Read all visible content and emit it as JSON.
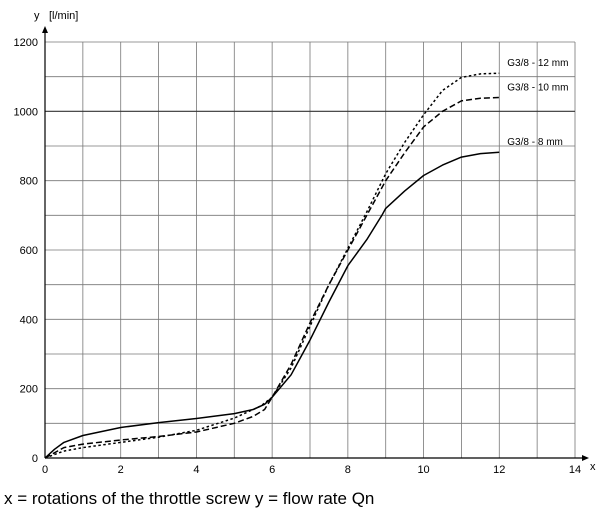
{
  "chart_data": {
    "type": "line",
    "xlabel": "x",
    "ylabel": "y",
    "yunit": "[l/min]",
    "xlim": [
      0,
      14
    ],
    "ylim": [
      0,
      1200
    ],
    "xticks": [
      "0",
      "2",
      "4",
      "6",
      "8",
      "10",
      "12",
      "14"
    ],
    "yticks": [
      "0",
      "200",
      "400",
      "600",
      "800",
      "1000",
      "1200"
    ],
    "grid": true,
    "series": [
      {
        "name": "G3/8 - 12 mm",
        "style": "dotted",
        "points": [
          [
            0,
            0
          ],
          [
            0.5,
            20
          ],
          [
            1,
            30
          ],
          [
            2,
            45
          ],
          [
            3,
            60
          ],
          [
            4,
            80
          ],
          [
            5,
            115
          ],
          [
            5.7,
            150
          ],
          [
            6,
            175
          ],
          [
            6.5,
            260
          ],
          [
            7,
            380
          ],
          [
            7.5,
            500
          ],
          [
            8,
            605
          ],
          [
            8.5,
            710
          ],
          [
            9,
            820
          ],
          [
            9.5,
            910
          ],
          [
            10,
            990
          ],
          [
            10.5,
            1060
          ],
          [
            11,
            1098
          ],
          [
            11.5,
            1108
          ],
          [
            12,
            1110
          ]
        ]
      },
      {
        "name": "G3/8 - 10 mm",
        "style": "dashed",
        "points": [
          [
            0,
            0
          ],
          [
            0.5,
            30
          ],
          [
            1,
            40
          ],
          [
            2,
            52
          ],
          [
            3,
            62
          ],
          [
            4,
            75
          ],
          [
            5,
            100
          ],
          [
            5.5,
            120
          ],
          [
            5.8,
            140
          ],
          [
            6,
            175
          ],
          [
            6.5,
            270
          ],
          [
            7,
            390
          ],
          [
            7.5,
            500
          ],
          [
            8,
            600
          ],
          [
            8.5,
            700
          ],
          [
            9,
            800
          ],
          [
            9.5,
            880
          ],
          [
            10,
            955
          ],
          [
            10.5,
            1000
          ],
          [
            11,
            1030
          ],
          [
            11.5,
            1038
          ],
          [
            12,
            1040
          ]
        ]
      },
      {
        "name": "G3/8 - 8 mm",
        "style": "solid",
        "points": [
          [
            0,
            0
          ],
          [
            0.25,
            25
          ],
          [
            0.5,
            45
          ],
          [
            1,
            65
          ],
          [
            2,
            88
          ],
          [
            3,
            102
          ],
          [
            4,
            114
          ],
          [
            5,
            128
          ],
          [
            5.5,
            140
          ],
          [
            5.8,
            155
          ],
          [
            6,
            175
          ],
          [
            6.5,
            240
          ],
          [
            7,
            340
          ],
          [
            7.5,
            450
          ],
          [
            8,
            555
          ],
          [
            8.5,
            630
          ],
          [
            8.9,
            700
          ],
          [
            9,
            720
          ],
          [
            9.5,
            770
          ],
          [
            10,
            815
          ],
          [
            10.5,
            845
          ],
          [
            11,
            868
          ],
          [
            11.5,
            878
          ],
          [
            12,
            882
          ]
        ]
      }
    ]
  },
  "caption": "x = rotations of the throttle screw y = flow rate Qn"
}
